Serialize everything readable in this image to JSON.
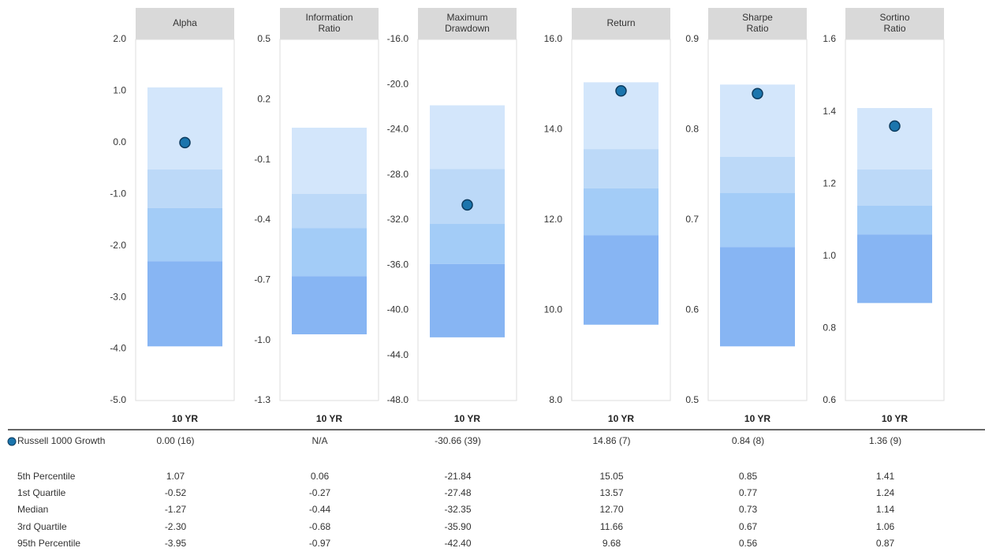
{
  "chart_data": {
    "type": "floating-bar",
    "series_name": "Russell 1000 Growth",
    "series_color": "#1b75ad",
    "segment_colors": [
      "#d3e6fb",
      "#bcd9f8",
      "#a3ccf7",
      "#87b5f3"
    ],
    "row_labels": [
      "5th Percentile",
      "1st Quartile",
      "Median",
      "3rd Quartile",
      "95th Percentile"
    ],
    "panels": [
      {
        "title": [
          "Alpha"
        ],
        "period": "10 YR",
        "ylim": [
          -5,
          2
        ],
        "yticks": [
          {
            "value": 2,
            "label": "2.0"
          },
          {
            "value": 1,
            "label": "1.0"
          },
          {
            "value": 0,
            "label": "0.0"
          },
          {
            "value": -1,
            "label": "-1.0"
          },
          {
            "value": -2,
            "label": "-2.0"
          },
          {
            "value": -3,
            "label": "-3.0"
          },
          {
            "value": -4,
            "label": "-4.0"
          },
          {
            "value": -5,
            "label": "-5.0"
          }
        ],
        "values": [
          1.07,
          -0.52,
          -1.27,
          -2.3,
          -3.95
        ],
        "value_labels": [
          "1.07",
          "-0.52",
          "-1.27",
          "-2.30",
          "-3.95"
        ],
        "point": 0,
        "point_label": "0.00  (16)"
      },
      {
        "title": [
          "Information",
          "Ratio"
        ],
        "period": "10 YR",
        "ylim": [
          -1.3,
          0.5
        ],
        "yticks": [
          0.5,
          0.2,
          -0.1,
          -0.4,
          -0.7,
          {
            "value": -1,
            "label": "-1.0"
          },
          -1.3
        ],
        "values": [
          0.06,
          -0.27,
          -0.44,
          -0.68,
          -0.97
        ],
        "value_labels": [
          "0.06",
          "-0.27",
          "-0.44",
          "-0.68",
          "-0.97"
        ],
        "point": null,
        "point_label": "N/A"
      },
      {
        "title": [
          "Maximum",
          "Drawdown"
        ],
        "period": "10 YR",
        "ylim": [
          -48,
          -16
        ],
        "yticks": [
          {
            "value": -16,
            "label": "-16.0"
          },
          {
            "value": -20,
            "label": "-20.0"
          },
          {
            "value": -24,
            "label": "-24.0"
          },
          {
            "value": -28,
            "label": "-28.0"
          },
          {
            "value": -32,
            "label": "-32.0"
          },
          {
            "value": -36,
            "label": "-36.0"
          },
          {
            "value": -40,
            "label": "-40.0"
          },
          {
            "value": -44,
            "label": "-44.0"
          },
          {
            "value": -48,
            "label": "-48.0"
          }
        ],
        "values": [
          -21.84,
          -27.48,
          -32.35,
          -35.9,
          -42.4
        ],
        "value_labels": [
          "-21.84",
          "-27.48",
          "-32.35",
          "-35.90",
          "-42.40"
        ],
        "point": -30.66,
        "point_label": "-30.66  (39)"
      },
      {
        "title": [
          "Return"
        ],
        "period": "10 YR",
        "ylim": [
          8,
          16
        ],
        "yticks": [
          {
            "value": 16,
            "label": "16.0"
          },
          {
            "value": 14,
            "label": "14.0"
          },
          {
            "value": 12,
            "label": "12.0"
          },
          {
            "value": 10,
            "label": "10.0"
          },
          {
            "value": 8,
            "label": "8.0"
          }
        ],
        "values": [
          15.05,
          13.57,
          12.7,
          11.66,
          9.68
        ],
        "value_labels": [
          "15.05",
          "13.57",
          "12.70",
          "11.66",
          "9.68"
        ],
        "point": 14.86,
        "point_label": "14.86  (7)"
      },
      {
        "title": [
          "Sharpe",
          "Ratio"
        ],
        "period": "10 YR",
        "ylim": [
          0.5,
          0.9
        ],
        "yticks": [
          0.9,
          0.8,
          0.7,
          0.6,
          0.5
        ],
        "values": [
          0.85,
          0.77,
          0.73,
          0.67,
          0.56
        ],
        "value_labels": [
          "0.85",
          "0.77",
          "0.73",
          "0.67",
          "0.56"
        ],
        "point": 0.84,
        "point_label": "0.84  (8)"
      },
      {
        "title": [
          "Sortino",
          "Ratio"
        ],
        "period": "10 YR",
        "ylim": [
          0.6,
          1.6
        ],
        "yticks": [
          1.6,
          1.4,
          1.2,
          {
            "value": 1,
            "label": "1.0"
          },
          0.8,
          0.6
        ],
        "values": [
          1.41,
          1.24,
          1.14,
          1.06,
          0.87
        ],
        "value_labels": [
          "1.41",
          "1.24",
          "1.14",
          "1.06",
          "0.87"
        ],
        "point": 1.36,
        "point_label": "1.36  (9)"
      }
    ]
  }
}
